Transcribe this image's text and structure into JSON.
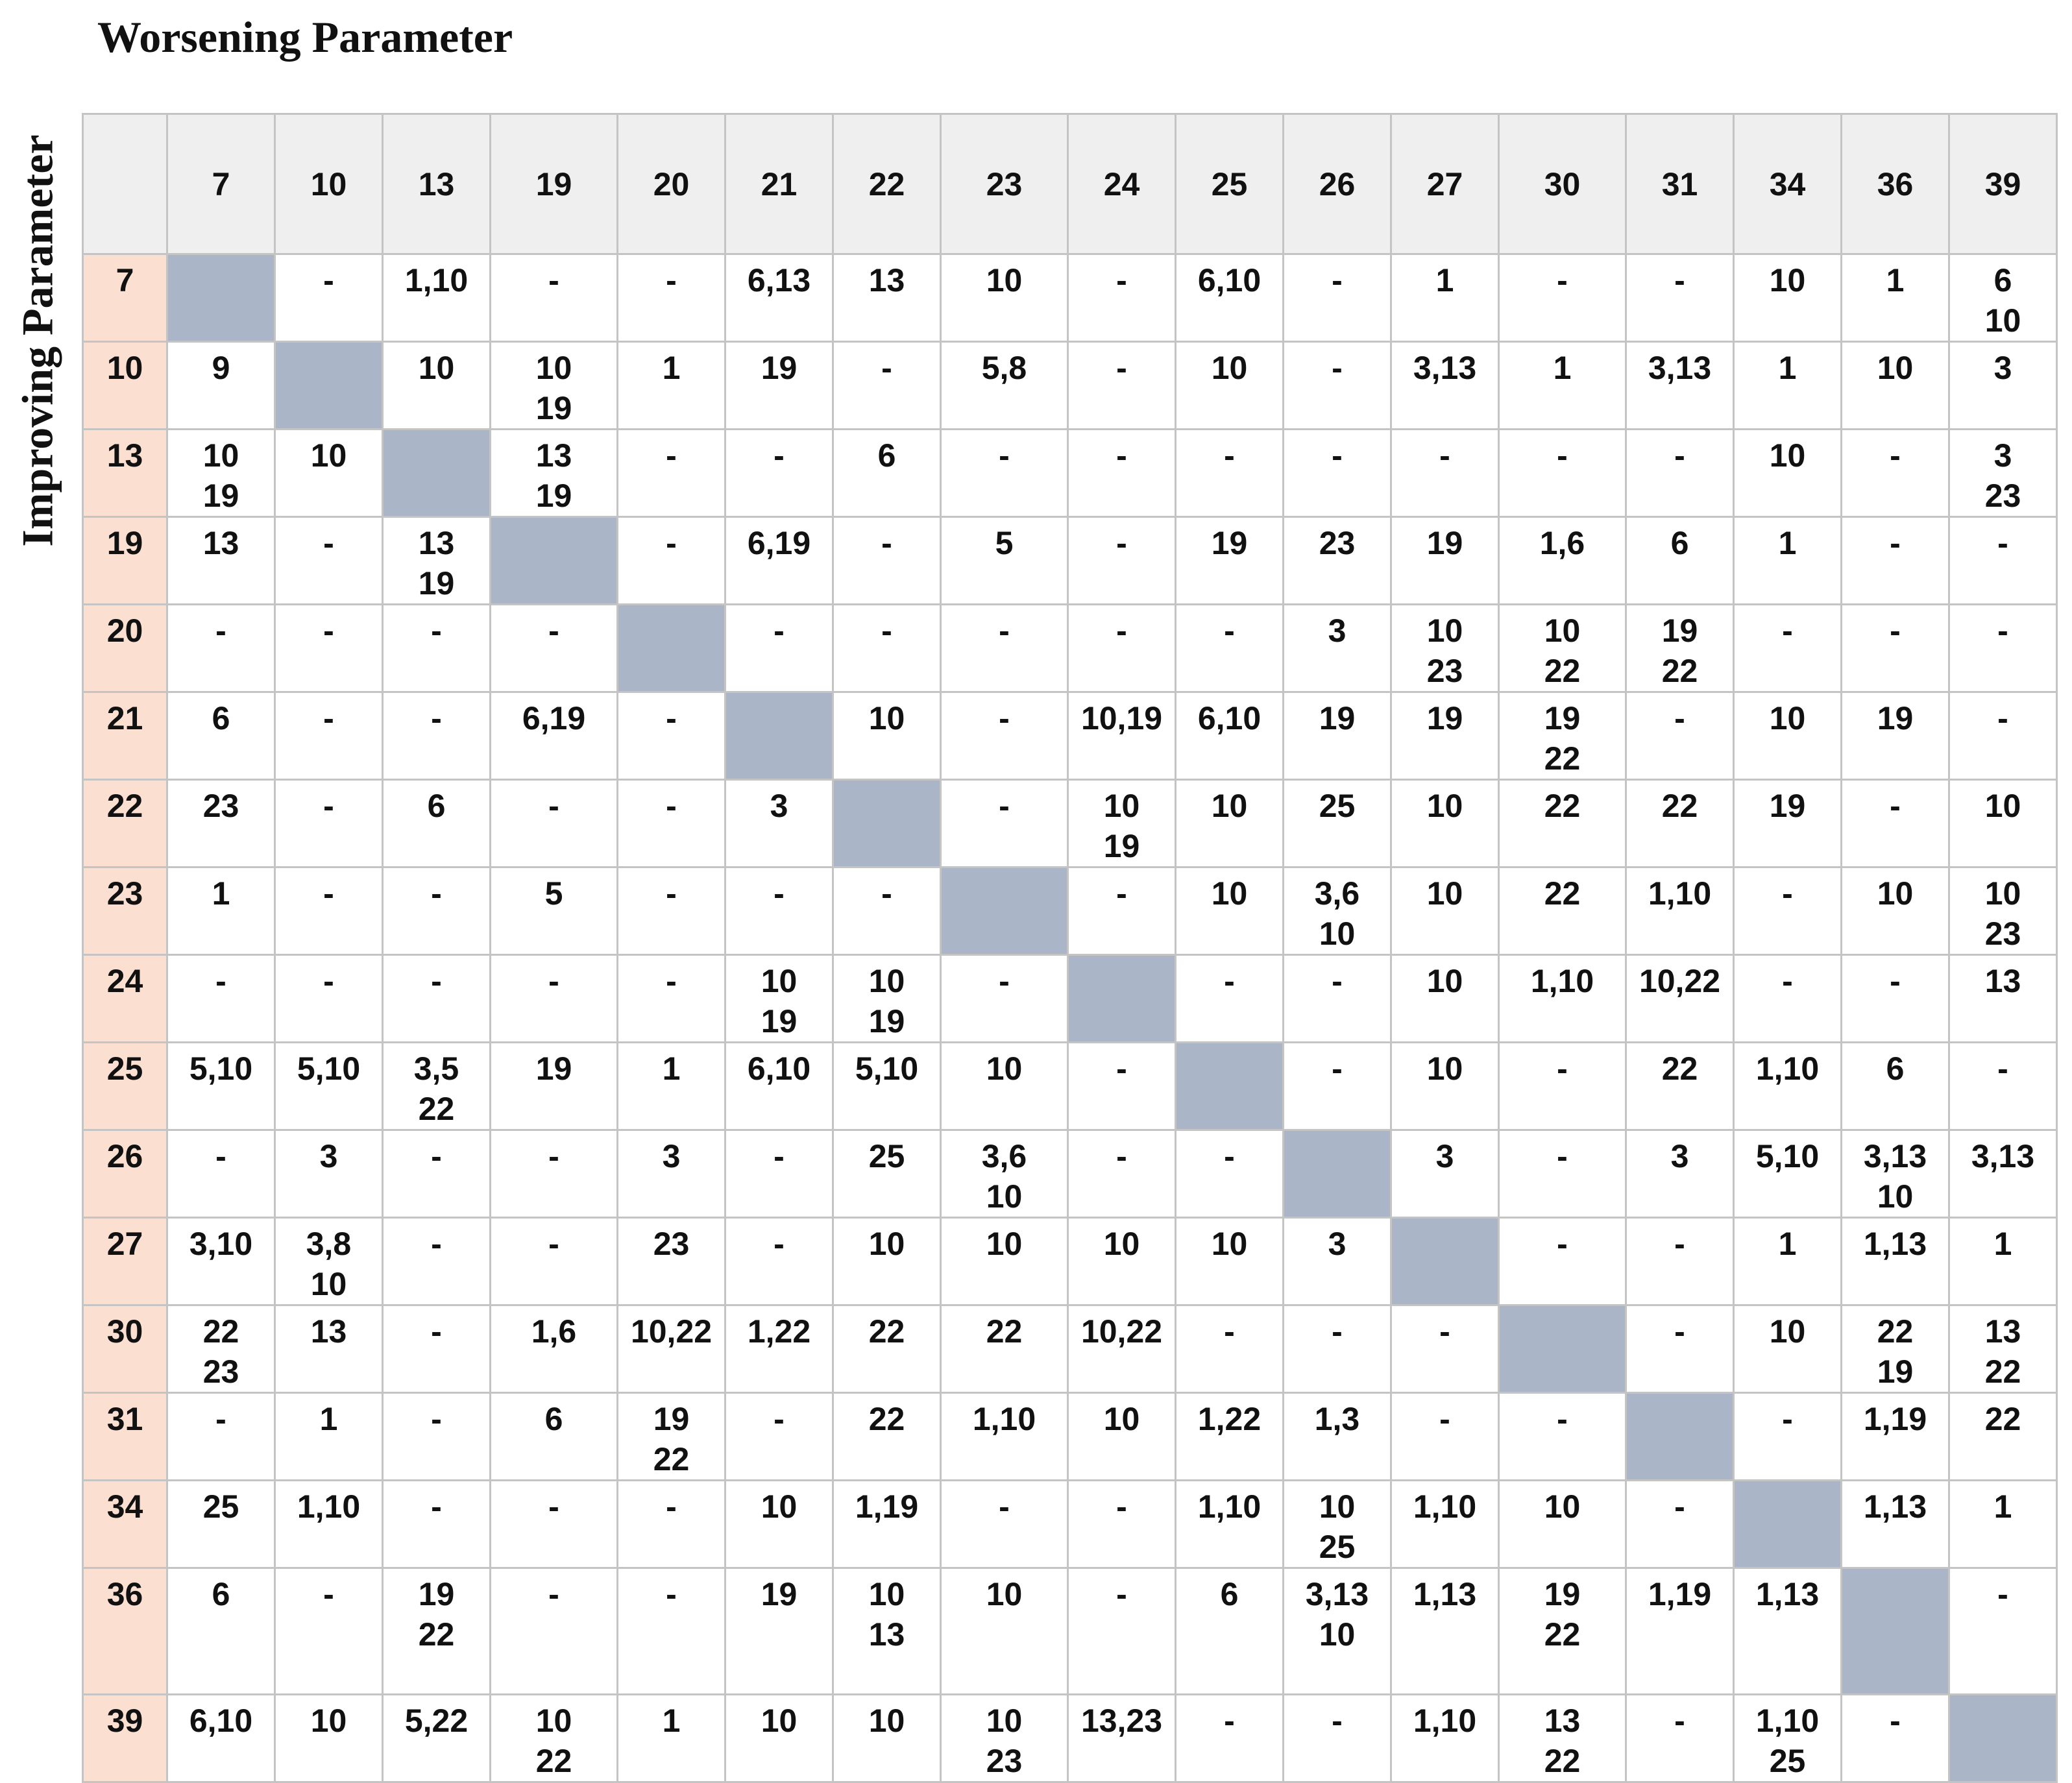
{
  "title": "Worsening Parameter",
  "side_title": "Improving Parameter",
  "column_headers": [
    "7",
    "10",
    "13",
    "19",
    "20",
    "21",
    "22",
    "23",
    "24",
    "25",
    "26",
    "27",
    "30",
    "31",
    "34",
    "36",
    "39"
  ],
  "rows": [
    {
      "label": "7",
      "cells": [
        "",
        "-",
        "1,10",
        "-",
        "-",
        "6,13",
        "13",
        "10",
        "-",
        "6,10",
        "-",
        "1",
        "-",
        "-",
        "10",
        "1",
        "6\n10"
      ]
    },
    {
      "label": "10",
      "cells": [
        "9",
        "",
        "10",
        "10\n19",
        "1",
        "19",
        "-",
        "5,8",
        "-",
        "10",
        "-",
        "3,13",
        "1",
        "3,13",
        "1",
        "10",
        "3"
      ]
    },
    {
      "label": "13",
      "cells": [
        "10\n19",
        "10",
        "",
        "13\n19",
        "-",
        "-",
        "6",
        "-",
        "-",
        "-",
        "-",
        "-",
        "-",
        "-",
        "10",
        "-",
        "3\n23"
      ]
    },
    {
      "label": "19",
      "cells": [
        "13",
        "-",
        "13\n19",
        "",
        "-",
        "6,19",
        "-",
        "5",
        "-",
        "19",
        "23",
        "19",
        "1,6",
        "6",
        "1",
        "-",
        "-"
      ]
    },
    {
      "label": "20",
      "cells": [
        "-",
        "-",
        "-",
        "-",
        "",
        "-",
        "-",
        "-",
        "-",
        "-",
        "3",
        "10\n23",
        "10\n22",
        "19\n22",
        "-",
        "-",
        "-"
      ]
    },
    {
      "label": "21",
      "cells": [
        "6",
        "-",
        "-",
        "6,19",
        "-",
        "",
        "10",
        "-",
        "10,19",
        "6,10",
        "19",
        "19",
        "19\n22",
        "-",
        "10",
        "19",
        "-"
      ]
    },
    {
      "label": "22",
      "cells": [
        "23",
        "-",
        "6",
        "-",
        "-",
        "3",
        "",
        "-",
        "10\n19",
        "10",
        "25",
        "10",
        "22",
        "22",
        "19",
        "-",
        "10"
      ]
    },
    {
      "label": "23",
      "cells": [
        "1",
        "-",
        "-",
        "5",
        "-",
        "-",
        "-",
        "",
        "-",
        "10",
        "3,6\n10",
        "10",
        "22",
        "1,10",
        "-",
        "10",
        "10\n23"
      ]
    },
    {
      "label": "24",
      "cells": [
        "-",
        "-",
        "-",
        "-",
        "-",
        "10\n19",
        "10\n19",
        "-",
        "",
        "-",
        "-",
        "10",
        "1,10",
        "10,22",
        "-",
        "-",
        "13"
      ]
    },
    {
      "label": "25",
      "cells": [
        "5,10",
        "5,10",
        "3,5\n22",
        "19",
        "1",
        "6,10",
        "5,10",
        "10",
        "-",
        "",
        "-",
        "10",
        "-",
        "22",
        "1,10",
        "6",
        "-"
      ]
    },
    {
      "label": "26",
      "cells": [
        "-",
        "3",
        "-",
        "-",
        "3",
        "-",
        "25",
        "3,6\n10",
        "-",
        "-",
        "",
        "3",
        "-",
        "3",
        "5,10",
        "3,13\n10",
        "3,13"
      ]
    },
    {
      "label": "27",
      "cells": [
        "3,10",
        "3,8\n10",
        "-",
        "-",
        "23",
        "-",
        "10",
        "10",
        "10",
        "10",
        "3",
        "",
        "-",
        "-",
        "1",
        "1,13",
        "1"
      ]
    },
    {
      "label": "30",
      "cells": [
        "22\n23",
        "13",
        "-",
        "1,6",
        "10,22",
        "1,22",
        "22",
        "22",
        "10,22",
        "-",
        "-",
        "-",
        "",
        "-",
        "10",
        "22\n19",
        "13\n22"
      ]
    },
    {
      "label": "31",
      "cells": [
        "-",
        "1",
        "-",
        "6",
        "19\n22",
        "-",
        "22",
        "1,10",
        "10",
        "1,22",
        "1,3",
        "-",
        "-",
        "",
        "-",
        "1,19",
        "22"
      ]
    },
    {
      "label": "34",
      "cells": [
        "25",
        "1,10",
        "-",
        "-",
        "-",
        "10",
        "1,19",
        "-",
        "-",
        "1,10",
        "10\n25",
        "1,10",
        "10",
        "-",
        "",
        "1,13",
        "1"
      ]
    },
    {
      "label": "36",
      "cells": [
        "6",
        "-",
        "19\n22",
        "-",
        "-",
        "19",
        "10\n13",
        "10",
        "-",
        "6",
        "3,13\n10",
        "1,13",
        "19\n22",
        "1,19",
        "1,13",
        "",
        "-"
      ]
    },
    {
      "label": "39",
      "cells": [
        "6,10",
        "10",
        "5,22",
        "10\n22",
        "1",
        "10",
        "10",
        "10\n23",
        "13,23",
        "-",
        "-",
        "1,10",
        "13\n22",
        "-",
        "1,10\n25",
        "-",
        ""
      ]
    }
  ]
}
